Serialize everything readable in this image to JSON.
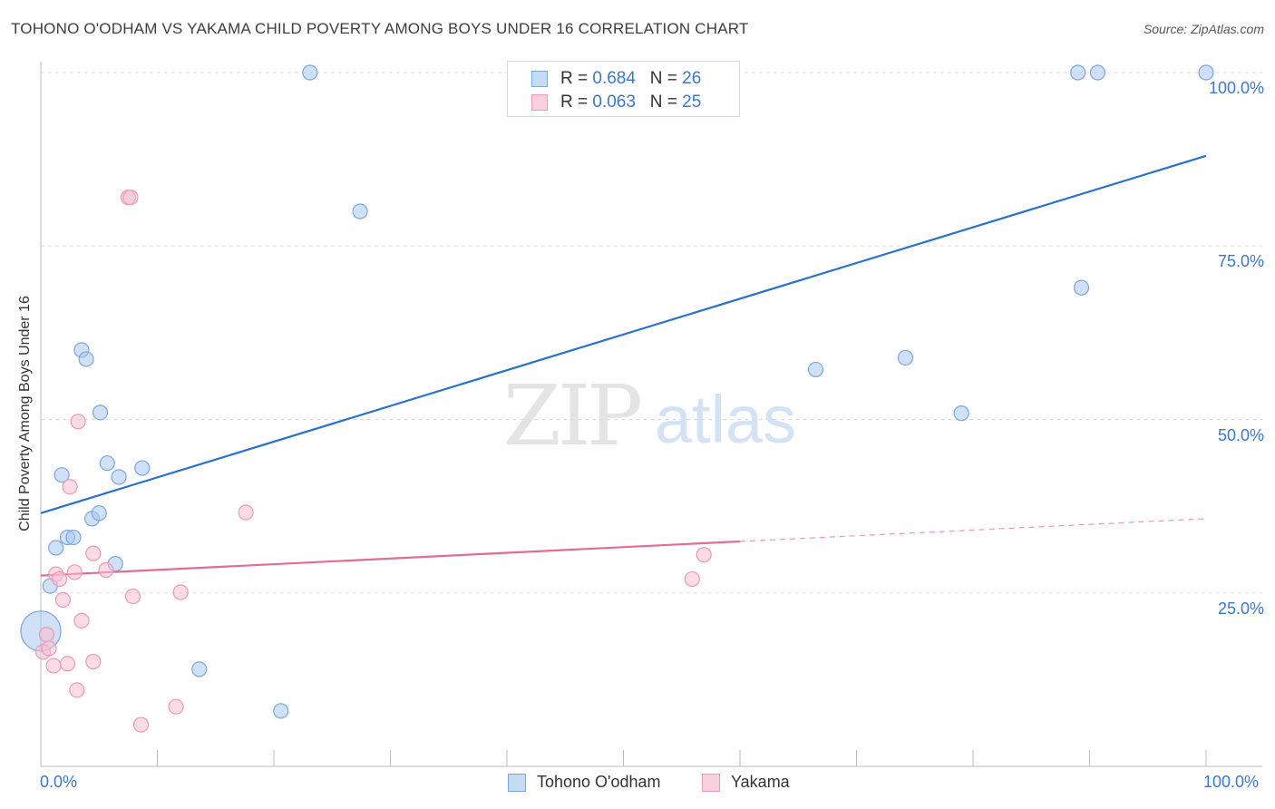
{
  "chart_data": {
    "type": "scatter",
    "title": "TOHONO O'ODHAM VS YAKAMA CHILD POVERTY AMONG BOYS UNDER 16 CORRELATION CHART",
    "source": "Source: ZipAtlas.com",
    "xlabel": "",
    "ylabel": "Child Poverty Among Boys Under 16",
    "xlim": [
      0,
      100
    ],
    "ylim": [
      0,
      100
    ],
    "x_tick_labels": [
      "0.0%",
      "100.0%"
    ],
    "y_tick_labels": [
      "25.0%",
      "50.0%",
      "75.0%",
      "100.0%"
    ],
    "y_ticks": [
      25,
      50,
      75,
      100
    ],
    "watermark": {
      "zip": "ZIP",
      "atlas": "atlas"
    },
    "legend_stats": [
      {
        "r_label": "R = ",
        "r_value": "0.684",
        "n_label": "N = ",
        "n_value": "26"
      },
      {
        "r_label": "R = ",
        "r_value": "0.063",
        "n_label": "N = ",
        "n_value": "25"
      }
    ],
    "series": [
      {
        "name": "Tohono O'odham",
        "color": "#a9c9f0",
        "stroke": "#7aa7dc",
        "line_color": "#2a72d0",
        "trend": {
          "x0": 0,
          "y0": 36.5,
          "x1": 100,
          "y1": 88.0,
          "solid_to": 100
        },
        "points": [
          {
            "x": 0.0,
            "y": 19.5,
            "big": true
          },
          {
            "x": 0.8,
            "y": 26.0
          },
          {
            "x": 1.3,
            "y": 31.5
          },
          {
            "x": 1.8,
            "y": 42.0
          },
          {
            "x": 2.3,
            "y": 33.0
          },
          {
            "x": 2.8,
            "y": 33.0
          },
          {
            "x": 3.5,
            "y": 60.0
          },
          {
            "x": 3.9,
            "y": 58.7
          },
          {
            "x": 4.4,
            "y": 35.7
          },
          {
            "x": 5.0,
            "y": 36.5
          },
          {
            "x": 5.1,
            "y": 51.0
          },
          {
            "x": 5.7,
            "y": 43.7
          },
          {
            "x": 6.4,
            "y": 29.2
          },
          {
            "x": 6.7,
            "y": 41.7
          },
          {
            "x": 8.7,
            "y": 43.0
          },
          {
            "x": 13.6,
            "y": 14.0
          },
          {
            "x": 20.6,
            "y": 8.0
          },
          {
            "x": 23.1,
            "y": 100.0
          },
          {
            "x": 27.4,
            "y": 80.0
          },
          {
            "x": 66.5,
            "y": 57.2
          },
          {
            "x": 74.2,
            "y": 58.9
          },
          {
            "x": 79.0,
            "y": 50.9
          },
          {
            "x": 89.0,
            "y": 100.0
          },
          {
            "x": 89.3,
            "y": 69.0
          },
          {
            "x": 90.7,
            "y": 100.0
          },
          {
            "x": 100.0,
            "y": 100.0
          }
        ]
      },
      {
        "name": "Yakama",
        "color": "#f7c0d2",
        "stroke": "#ee98b4",
        "line_color": "#e46b95",
        "trend": {
          "x0": 0,
          "y0": 27.5,
          "x1": 100,
          "y1": 35.7,
          "solid_to": 60
        },
        "points": [
          {
            "x": 0.2,
            "y": 16.5
          },
          {
            "x": 0.5,
            "y": 19.0
          },
          {
            "x": 0.7,
            "y": 17.0
          },
          {
            "x": 1.1,
            "y": 14.5
          },
          {
            "x": 1.3,
            "y": 27.7
          },
          {
            "x": 1.6,
            "y": 27.0
          },
          {
            "x": 1.9,
            "y": 24.0
          },
          {
            "x": 2.3,
            "y": 14.8
          },
          {
            "x": 2.5,
            "y": 40.3
          },
          {
            "x": 2.9,
            "y": 28.0
          },
          {
            "x": 3.1,
            "y": 11.0
          },
          {
            "x": 3.2,
            "y": 49.7
          },
          {
            "x": 3.5,
            "y": 21.0
          },
          {
            "x": 4.5,
            "y": 15.1
          },
          {
            "x": 4.5,
            "y": 30.7
          },
          {
            "x": 5.6,
            "y": 28.3
          },
          {
            "x": 7.5,
            "y": 82.0
          },
          {
            "x": 7.7,
            "y": 82.0
          },
          {
            "x": 7.9,
            "y": 24.5
          },
          {
            "x": 8.6,
            "y": 6.0
          },
          {
            "x": 11.6,
            "y": 8.6
          },
          {
            "x": 12.0,
            "y": 25.1
          },
          {
            "x": 17.6,
            "y": 36.6
          },
          {
            "x": 55.9,
            "y": 27.0
          },
          {
            "x": 56.9,
            "y": 30.5
          }
        ]
      }
    ]
  }
}
